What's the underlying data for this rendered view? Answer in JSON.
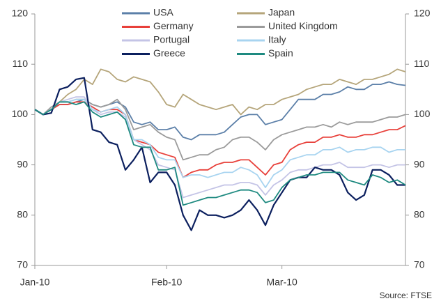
{
  "chart_data": {
    "type": "line",
    "categories": [
      "Jan-10",
      null,
      null,
      null,
      null,
      null,
      null,
      null,
      null,
      null,
      null,
      null,
      null,
      null,
      null,
      null,
      "Feb-10",
      null,
      null,
      null,
      null,
      null,
      null,
      null,
      null,
      null,
      null,
      null,
      null,
      null,
      "Mar-10",
      null,
      null,
      null,
      null,
      null,
      null,
      null,
      null,
      null,
      null,
      null,
      null,
      null,
      null,
      null
    ],
    "series": [
      {
        "name": "USA",
        "color": "#5b7fa8",
        "values": [
          101,
          100,
          101,
          102,
          102,
          102.5,
          103,
          102,
          101.5,
          102,
          102.5,
          101.5,
          98.5,
          98,
          98.5,
          97,
          97,
          97.5,
          95.5,
          95,
          96,
          96,
          96,
          96.5,
          98,
          99.5,
          100,
          100,
          98,
          98.5,
          99,
          101,
          103,
          103,
          103,
          104,
          104,
          104.5,
          105.5,
          105,
          105,
          106,
          106,
          106.5,
          106,
          105.8
        ]
      },
      {
        "name": "Japan",
        "color": "#b5a57a",
        "values": [
          101,
          100,
          101,
          102.5,
          104,
          105,
          107,
          106,
          109,
          108.5,
          107,
          106.5,
          107.5,
          107,
          106.5,
          104.5,
          102,
          101.5,
          104,
          103,
          102,
          101.5,
          101,
          101.5,
          102,
          100,
          101.5,
          101,
          102,
          102,
          103,
          103.5,
          104,
          105,
          105.5,
          106,
          106,
          107,
          106.5,
          106,
          107,
          107,
          107.5,
          108,
          109,
          108.5
        ]
      },
      {
        "name": "Germany",
        "color": "#e8403a",
        "values": [
          101,
          100,
          101,
          102,
          102,
          102.5,
          102.5,
          101.5,
          100.5,
          101,
          101,
          100,
          95,
          94.5,
          94,
          92.5,
          92,
          91.5,
          87.5,
          88.5,
          89,
          89,
          90,
          90.5,
          90.5,
          91,
          91,
          89.5,
          88,
          90,
          90.5,
          93,
          94,
          94.5,
          94.5,
          95.5,
          95.5,
          96,
          95.5,
          95.5,
          96,
          96,
          96.5,
          97,
          97,
          97.8
        ]
      },
      {
        "name": "United Kingdom",
        "color": "#9b9b9b",
        "values": [
          101,
          100,
          101.5,
          102.5,
          102.5,
          103,
          103,
          102,
          101.5,
          102,
          103,
          101,
          97,
          97.5,
          98,
          96.5,
          95.5,
          95,
          91,
          91.5,
          92,
          92,
          93,
          93.5,
          95,
          95.5,
          95.5,
          94.5,
          93,
          95,
          96,
          96.5,
          97,
          97.5,
          97.5,
          98,
          97.5,
          98.5,
          98,
          98.5,
          98.5,
          98.5,
          99,
          99.5,
          99.5,
          100
        ]
      },
      {
        "name": "Portugal",
        "color": "#c4c4e6",
        "values": [
          101,
          100,
          101,
          102.5,
          103,
          103.5,
          103.5,
          101,
          100,
          100.5,
          100.5,
          99.5,
          95,
          94,
          93,
          90,
          89.5,
          89,
          83.5,
          84,
          84.5,
          85,
          85.5,
          86,
          86,
          86.5,
          86.5,
          86,
          84,
          86,
          87,
          88.5,
          89,
          89,
          89.5,
          90,
          90,
          90.5,
          89.5,
          89.5,
          89.5,
          90,
          90,
          89.5,
          90,
          90
        ]
      },
      {
        "name": "Italy",
        "color": "#a8d4f0",
        "values": [
          101,
          100,
          101,
          102.5,
          102.5,
          103,
          103,
          101,
          100.5,
          101,
          101.5,
          100,
          95,
          95,
          94,
          91.5,
          91,
          91,
          87.5,
          88,
          88,
          87.5,
          88,
          88.5,
          88.5,
          89.5,
          89,
          88,
          85.5,
          88,
          89,
          91,
          91.5,
          92,
          92,
          93,
          93,
          93.5,
          92.5,
          93,
          93,
          93.5,
          93.5,
          92.5,
          93,
          93
        ]
      },
      {
        "name": "Greece",
        "color": "#0b1f5e",
        "values": [
          101,
          100,
          100.3,
          105,
          105.5,
          107,
          107.3,
          97,
          96.5,
          94.5,
          94,
          89,
          91,
          93.5,
          86.5,
          88.5,
          88.5,
          86,
          80,
          77,
          81,
          80,
          80,
          79.5,
          80,
          81,
          83,
          81,
          78,
          82,
          84.5,
          87,
          87.5,
          87.5,
          89.5,
          89,
          89,
          88,
          84.5,
          83,
          84,
          89,
          89,
          88,
          86,
          86
        ]
      },
      {
        "name": "Spain",
        "color": "#1e8a80",
        "values": [
          101,
          100,
          101,
          102.5,
          102.5,
          102,
          102.5,
          100.5,
          99.5,
          100,
          100.5,
          99,
          94,
          93.5,
          93.5,
          89,
          89,
          89.5,
          82,
          82.5,
          83,
          83.5,
          83.5,
          84,
          84.5,
          85,
          85,
          84.5,
          82.5,
          83,
          85.5,
          87,
          87.5,
          88,
          88,
          88.5,
          88.5,
          88.5,
          87,
          86.5,
          86,
          88,
          87.5,
          86.5,
          87,
          86
        ]
      }
    ],
    "ylim": [
      70,
      120
    ],
    "yticks": [
      70,
      80,
      90,
      100,
      110,
      120
    ],
    "y2lim": [
      70,
      120
    ],
    "y2ticks": [
      70,
      80,
      90,
      100,
      110,
      120
    ],
    "grid": false,
    "source": "Source: FTSE"
  }
}
